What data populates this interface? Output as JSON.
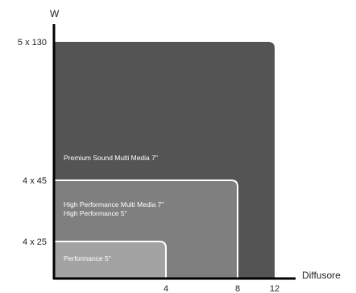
{
  "chart_data": {
    "type": "area",
    "title": "",
    "ylabel": "W",
    "xlabel": "Diffusore",
    "x_ticks": [
      "4",
      "8",
      "12"
    ],
    "y_ticks": [
      "4 x 25",
      "4 x 45",
      "5 x 130"
    ],
    "regions": [
      {
        "labels": [
          "Premium Sound Multi Media 7\""
        ],
        "x_max": 12,
        "y_level": "5 x 130",
        "color": "#545454"
      },
      {
        "labels": [
          "High Performance Multi Media 7\"",
          "High Performance 5\""
        ],
        "x_max": 8,
        "y_level": "4 x 45",
        "color": "#7f7f7f"
      },
      {
        "labels": [
          "Performance 5\""
        ],
        "x_max": 4,
        "y_level": "4 x 25",
        "color": "#a3a3a3"
      }
    ]
  }
}
